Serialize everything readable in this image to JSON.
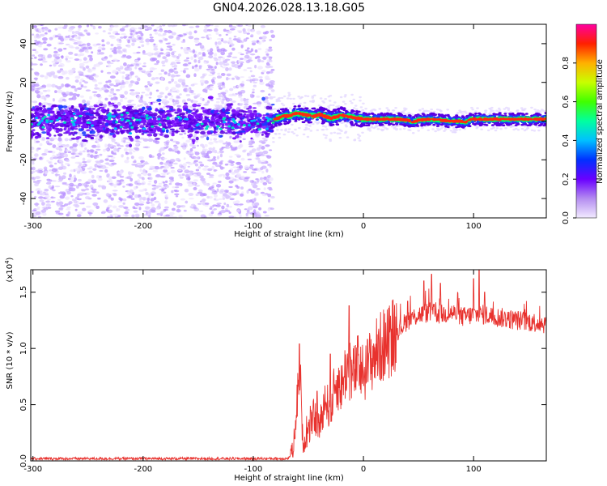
{
  "title": "GN04.2026.028.13.18.G05",
  "chart_data": [
    {
      "type": "heatmap",
      "xlabel": "Height of straight line (km)",
      "ylabel": "Frequency (Hz)",
      "xlim": [
        -302,
        166
      ],
      "ylim": [
        -50,
        50
      ],
      "x_ticks": [
        -300,
        -200,
        -100,
        0,
        100
      ],
      "y_ticks": [
        -40,
        -20,
        0,
        20,
        40
      ],
      "noise_region_x": [
        -302,
        -82
      ],
      "signal_track": [
        [
          -82,
          0.5
        ],
        [
          -78,
          1.5
        ],
        [
          -72,
          2.5
        ],
        [
          -66,
          3.0
        ],
        [
          -60,
          4.0
        ],
        [
          -55,
          3.5
        ],
        [
          -50,
          3.0
        ],
        [
          -45,
          2.5
        ],
        [
          -40,
          3.5
        ],
        [
          -35,
          2.5
        ],
        [
          -30,
          1.5
        ],
        [
          -25,
          2.0
        ],
        [
          -20,
          3.0
        ],
        [
          -15,
          2.5
        ],
        [
          -10,
          2.0
        ],
        [
          -5,
          1.5
        ],
        [
          0,
          1.0
        ],
        [
          10,
          1.0
        ],
        [
          20,
          1.0
        ],
        [
          30,
          1.0
        ],
        [
          40,
          0.5
        ],
        [
          45,
          -0.5
        ],
        [
          50,
          0.5
        ],
        [
          60,
          1.0
        ],
        [
          70,
          0.5
        ],
        [
          80,
          0.0
        ],
        [
          88,
          0.0
        ],
        [
          93,
          -0.5
        ],
        [
          98,
          1.0
        ],
        [
          110,
          1.0
        ],
        [
          120,
          1.0
        ],
        [
          140,
          1.0
        ],
        [
          166,
          1.0
        ]
      ],
      "colorbar": {
        "label": "Normalized spectral amplitude",
        "range": [
          0,
          1
        ],
        "ticks": [
          0.0,
          0.2,
          0.4,
          0.6,
          0.8
        ]
      }
    },
    {
      "type": "line",
      "xlabel": "Height of straight line (km)",
      "ylabel": "SNR (10 * v/v)",
      "multiplier_label": "(x10",
      "multiplier_exp": "4",
      "multiplier_close": ")",
      "xlim": [
        -302,
        166
      ],
      "ylim": [
        0,
        1.7
      ],
      "x_ticks": [
        -300,
        -200,
        -100,
        0,
        100
      ],
      "y_ticks": [
        0.0,
        0.5,
        1.0,
        1.5
      ],
      "color": "#e8322e",
      "envelope": [
        [
          -302,
          0.02
        ],
        [
          -200,
          0.02
        ],
        [
          -100,
          0.02
        ],
        [
          -68,
          0.02
        ],
        [
          -64,
          0.1
        ],
        [
          -60,
          0.55
        ],
        [
          -58,
          0.9
        ],
        [
          -55,
          0.15
        ],
        [
          -50,
          0.25
        ],
        [
          -45,
          0.4
        ],
        [
          -40,
          0.3
        ],
        [
          -35,
          0.55
        ],
        [
          -30,
          0.45
        ],
        [
          -25,
          0.7
        ],
        [
          -20,
          0.65
        ],
        [
          -15,
          0.85
        ],
        [
          -10,
          0.75
        ],
        [
          -5,
          0.85
        ],
        [
          0,
          0.78
        ],
        [
          10,
          0.95
        ],
        [
          20,
          1.05
        ],
        [
          30,
          1.15
        ],
        [
          40,
          1.25
        ],
        [
          50,
          1.3
        ],
        [
          60,
          1.32
        ],
        [
          70,
          1.3
        ],
        [
          80,
          1.32
        ],
        [
          90,
          1.28
        ],
        [
          100,
          1.3
        ],
        [
          110,
          1.3
        ],
        [
          120,
          1.28
        ],
        [
          140,
          1.25
        ],
        [
          166,
          1.22
        ]
      ],
      "spikes": [
        [
          -58,
          1.04
        ],
        [
          -42,
          0.62
        ],
        [
          -30,
          0.95
        ],
        [
          -13,
          1.38
        ],
        [
          40,
          1.42
        ],
        [
          55,
          1.6
        ],
        [
          62,
          1.66
        ],
        [
          70,
          1.58
        ],
        [
          100,
          1.62
        ],
        [
          105,
          1.7
        ],
        [
          110,
          1.5
        ]
      ]
    }
  ]
}
